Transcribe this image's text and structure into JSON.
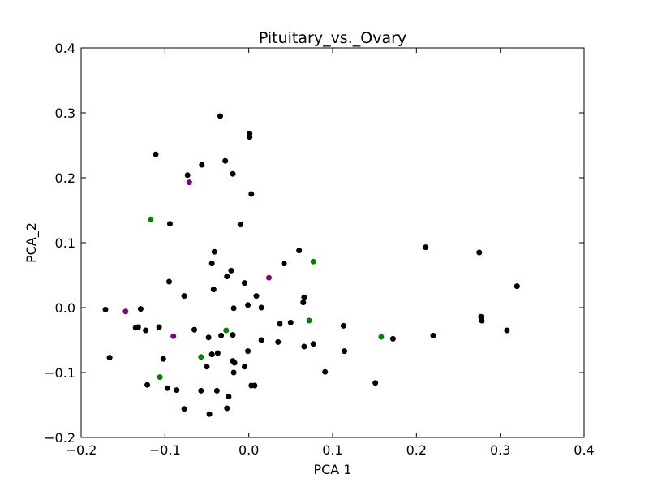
{
  "chart_data": {
    "type": "scatter",
    "title": "Pituitary_vs._Ovary",
    "xlabel": "PCA 1",
    "ylabel": "PCA_2",
    "xlim": [
      -0.2,
      0.4
    ],
    "ylim": [
      -0.2,
      0.4
    ],
    "xticks": [
      -0.2,
      -0.1,
      0.0,
      0.1,
      0.2,
      0.3,
      0.4
    ],
    "yticks": [
      -0.2,
      -0.1,
      0.0,
      0.1,
      0.2,
      0.3,
      0.4
    ],
    "xtick_labels": [
      "−0.2",
      "−0.1",
      "0.0",
      "0.1",
      "0.2",
      "0.3",
      "0.4"
    ],
    "ytick_labels": [
      "−0.2",
      "−0.1",
      "0.0",
      "0.1",
      "0.2",
      "0.3",
      "0.4"
    ],
    "grid": false,
    "series": [
      {
        "color": "#000000",
        "points": [
          [
            -0.034,
            0.295
          ],
          [
            0.001,
            0.268
          ],
          [
            0.001,
            0.263
          ],
          [
            -0.111,
            0.236
          ],
          [
            -0.028,
            0.226
          ],
          [
            -0.056,
            0.22
          ],
          [
            -0.073,
            0.204
          ],
          [
            -0.019,
            0.206
          ],
          [
            0.003,
            0.175
          ],
          [
            -0.094,
            0.129
          ],
          [
            -0.01,
            0.128
          ],
          [
            0.211,
            0.093
          ],
          [
            0.275,
            0.085
          ],
          [
            0.06,
            0.088
          ],
          [
            -0.041,
            0.086
          ],
          [
            0.042,
            0.068
          ],
          [
            -0.044,
            0.068
          ],
          [
            -0.021,
            0.057
          ],
          [
            -0.026,
            0.048
          ],
          [
            -0.095,
            0.04
          ],
          [
            -0.005,
            0.038
          ],
          [
            0.32,
            0.033
          ],
          [
            -0.042,
            0.028
          ],
          [
            -0.077,
            0.018
          ],
          [
            0.009,
            0.018
          ],
          [
            0.066,
            0.016
          ],
          [
            0.065,
            0.008
          ],
          [
            -0.001,
            0.004
          ],
          [
            0.015,
            0.0
          ],
          [
            -0.018,
            -0.001
          ],
          [
            -0.171,
            -0.003
          ],
          [
            -0.129,
            -0.002
          ],
          [
            0.277,
            -0.014
          ],
          [
            0.278,
            -0.02
          ],
          [
            0.037,
            -0.025
          ],
          [
            0.05,
            -0.023
          ],
          [
            0.113,
            -0.028
          ],
          [
            -0.107,
            -0.03
          ],
          [
            -0.135,
            -0.031
          ],
          [
            -0.132,
            -0.03
          ],
          [
            -0.123,
            -0.035
          ],
          [
            -0.065,
            -0.034
          ],
          [
            0.308,
            -0.035
          ],
          [
            -0.019,
            -0.042
          ],
          [
            -0.033,
            -0.043
          ],
          [
            -0.048,
            -0.046
          ],
          [
            0.22,
            -0.043
          ],
          [
            0.172,
            -0.048
          ],
          [
            0.015,
            -0.05
          ],
          [
            0.035,
            -0.053
          ],
          [
            0.077,
            -0.056
          ],
          [
            0.066,
            -0.06
          ],
          [
            0.114,
            -0.067
          ],
          [
            -0.001,
            -0.067
          ],
          [
            -0.037,
            -0.07
          ],
          [
            -0.044,
            -0.072
          ],
          [
            -0.166,
            -0.077
          ],
          [
            -0.102,
            -0.079
          ],
          [
            -0.019,
            -0.082
          ],
          [
            -0.017,
            -0.085
          ],
          [
            -0.05,
            -0.091
          ],
          [
            -0.005,
            -0.091
          ],
          [
            -0.018,
            -0.1
          ],
          [
            0.091,
            -0.099
          ],
          [
            0.151,
            -0.116
          ],
          [
            -0.121,
            -0.119
          ],
          [
            0.003,
            -0.12
          ],
          [
            0.007,
            -0.12
          ],
          [
            -0.097,
            -0.124
          ],
          [
            -0.086,
            -0.127
          ],
          [
            -0.057,
            -0.128
          ],
          [
            -0.038,
            -0.128
          ],
          [
            -0.024,
            -0.137
          ],
          [
            -0.077,
            -0.156
          ],
          [
            -0.026,
            -0.155
          ],
          [
            -0.047,
            -0.164
          ]
        ]
      },
      {
        "color": "#008000",
        "points": [
          [
            -0.117,
            0.136
          ],
          [
            0.077,
            0.071
          ],
          [
            0.072,
            -0.02
          ],
          [
            -0.027,
            -0.035
          ],
          [
            0.158,
            -0.045
          ],
          [
            -0.057,
            -0.076
          ],
          [
            -0.106,
            -0.107
          ]
        ]
      },
      {
        "color": "#800080",
        "points": [
          [
            -0.071,
            0.193
          ],
          [
            0.024,
            0.046
          ],
          [
            -0.147,
            -0.006
          ],
          [
            -0.09,
            -0.044
          ]
        ]
      }
    ]
  }
}
